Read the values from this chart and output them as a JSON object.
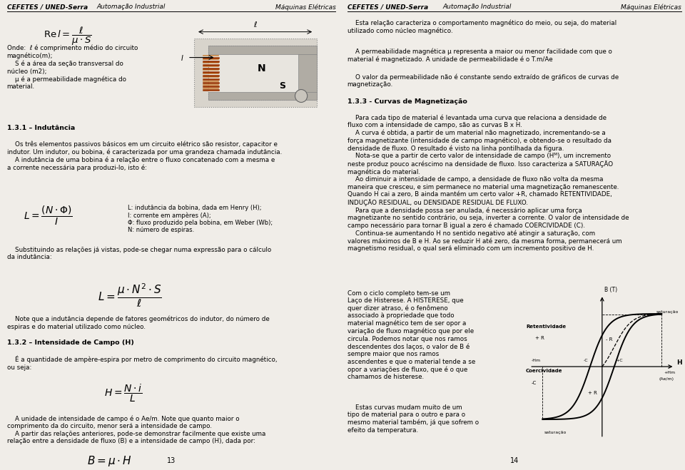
{
  "page_bg": "#f0ede8",
  "header_left": "CEFETES / UNED-Serra",
  "header_center": "Automação Industrial",
  "header_right": "Máquinas Elétricas",
  "page_number_left": "13",
  "page_number_right": "14",
  "fs": 6.3,
  "fs_bold": 6.8
}
